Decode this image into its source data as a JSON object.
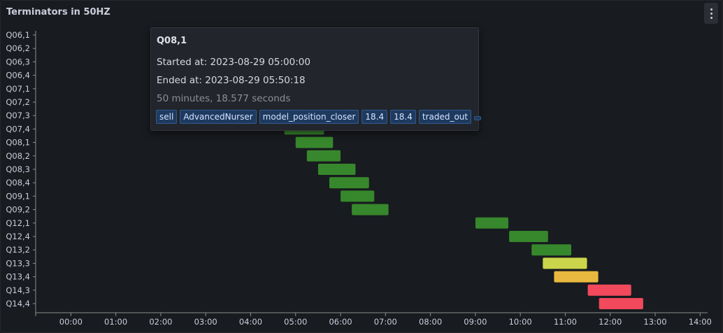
{
  "panel": {
    "title": "Terminators in 50HZ",
    "menu_icon": "ellipsis-vertical-icon"
  },
  "tooltip": {
    "title": "Q08,1",
    "started": "Started at: 2023-08-29 05:00:00",
    "ended": "Ended at: 2023-08-29 05:50:18",
    "duration": "50 minutes, 18.577 seconds",
    "tags": [
      "sell",
      "AdvancedNurser",
      "model_position_closer",
      "18.4",
      "18.4",
      "traded_out"
    ]
  },
  "chart_data": {
    "type": "bar",
    "orientation": "horizontal-timeline",
    "title": "Terminators in 50HZ",
    "xlabel": "",
    "ylabel": "",
    "x_ticks": [
      "00:00",
      "01:00",
      "02:00",
      "03:00",
      "04:00",
      "05:00",
      "06:00",
      "07:00",
      "08:00",
      "09:00",
      "10:00",
      "11:00",
      "12:00",
      "13:00",
      "14:00"
    ],
    "xlim": [
      "-00:47",
      "14:10"
    ],
    "categories": [
      "Q06,1",
      "Q06,2",
      "Q06,3",
      "Q06,4",
      "Q07,1",
      "Q07,2",
      "Q07,3",
      "Q07,4",
      "Q08,1",
      "Q08,2",
      "Q08,3",
      "Q08,4",
      "Q09,1",
      "Q09,2",
      "Q12,1",
      "Q12,4",
      "Q13,2",
      "Q13,3",
      "Q13,4",
      "Q14,3",
      "Q14,4"
    ],
    "segments": [
      {
        "row": "Q07,4",
        "start": "04:45",
        "end": "05:38",
        "color": "#37872d"
      },
      {
        "row": "Q08,1",
        "start": "05:00",
        "end": "05:50",
        "color": "#37872d"
      },
      {
        "row": "Q08,2",
        "start": "05:15",
        "end": "06:00",
        "color": "#37872d"
      },
      {
        "row": "Q08,3",
        "start": "05:30",
        "end": "06:20",
        "color": "#37872d"
      },
      {
        "row": "Q08,4",
        "start": "05:45",
        "end": "06:38",
        "color": "#37872d"
      },
      {
        "row": "Q09,1",
        "start": "06:00",
        "end": "06:45",
        "color": "#37872d"
      },
      {
        "row": "Q09,2",
        "start": "06:15",
        "end": "07:04",
        "color": "#37872d"
      },
      {
        "row": "Q12,1",
        "start": "09:00",
        "end": "09:44",
        "color": "#37872d"
      },
      {
        "row": "Q12,4",
        "start": "09:45",
        "end": "10:37",
        "color": "#37872d"
      },
      {
        "row": "Q13,2",
        "start": "10:15",
        "end": "11:08",
        "color": "#37872d"
      },
      {
        "row": "Q13,3",
        "start": "10:30",
        "end": "11:29",
        "color": "#cbd54b"
      },
      {
        "row": "Q13,4",
        "start": "10:45",
        "end": "11:44",
        "color": "#e8b93e"
      },
      {
        "row": "Q14,3",
        "start": "11:30",
        "end": "12:28",
        "color": "#f2495c"
      },
      {
        "row": "Q14,4",
        "start": "11:45",
        "end": "12:44",
        "color": "#f2495c"
      }
    ]
  }
}
